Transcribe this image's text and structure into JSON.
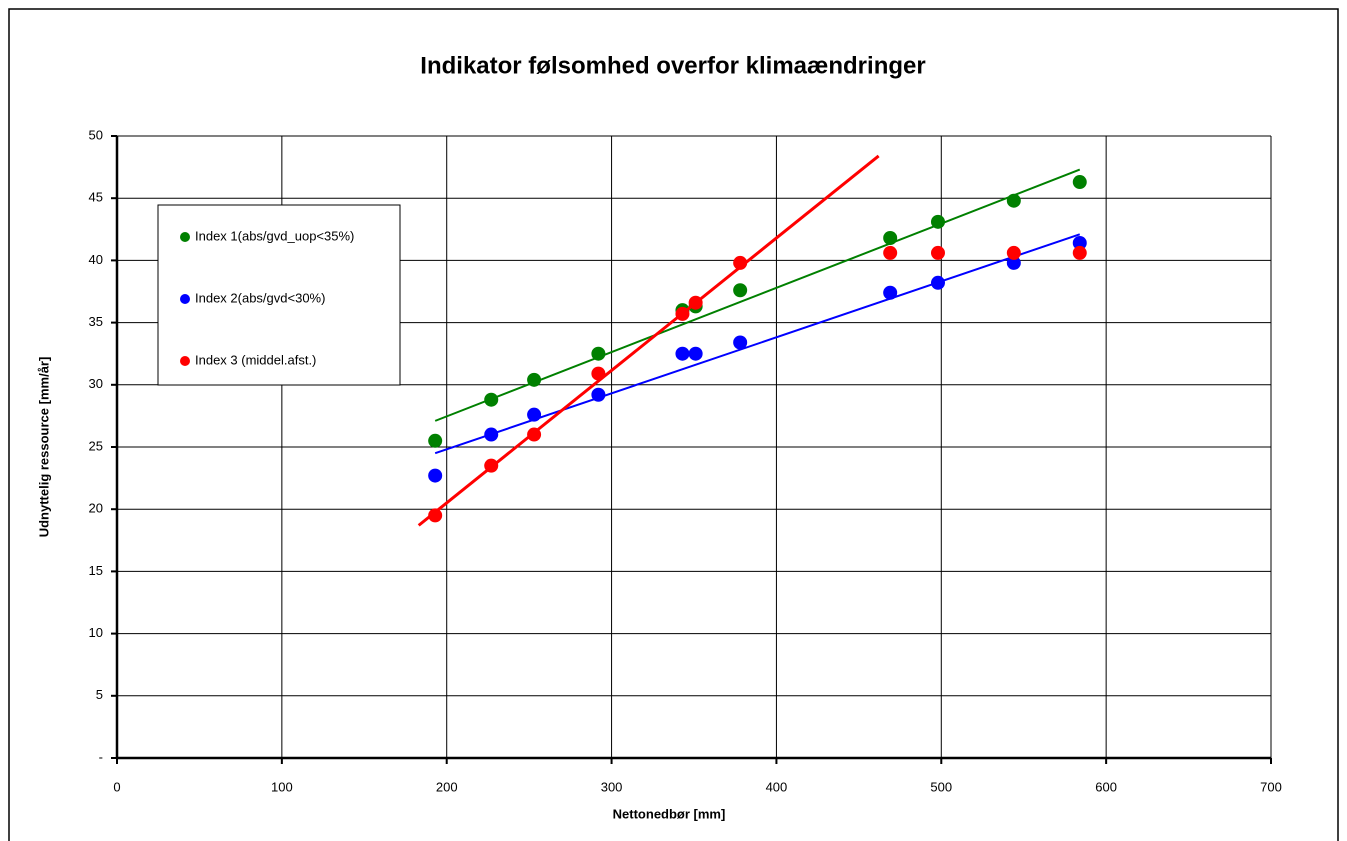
{
  "chart_data": {
    "type": "scatter",
    "title": "Indikator følsomhed overfor klimaændringer",
    "xlabel": "Nettonedbør [mm]",
    "ylabel": "Udnyttelig ressource [mm/år]",
    "xlim": [
      0,
      700
    ],
    "ylim": [
      0,
      50
    ],
    "xticks": [
      0,
      100,
      200,
      300,
      400,
      500,
      600,
      700
    ],
    "yticks": [
      {
        "value": 0,
        "label": "-"
      },
      5,
      10,
      15,
      20,
      25,
      30,
      35,
      40,
      45,
      50
    ],
    "grid": true,
    "legend": "upper left",
    "series": [
      {
        "name": "Index 1(abs/gvd_uop<35%)",
        "color": "#008000",
        "x": [
          193,
          227,
          253,
          292,
          343,
          351,
          378,
          469,
          498,
          544,
          584
        ],
        "values": [
          25.5,
          28.8,
          30.4,
          32.5,
          36.0,
          36.3,
          37.6,
          41.8,
          43.1,
          44.8,
          46.3
        ],
        "trend": {
          "x": [
            193,
            584
          ],
          "y": [
            27.1,
            47.3
          ]
        }
      },
      {
        "name": "Index 2(abs/gvd<30%)",
        "color": "#0000ff",
        "x": [
          193,
          227,
          253,
          292,
          343,
          351,
          378,
          469,
          498,
          544,
          584
        ],
        "values": [
          22.7,
          26.0,
          27.6,
          29.2,
          32.5,
          32.5,
          33.4,
          37.4,
          38.2,
          39.8,
          41.4
        ],
        "trend": {
          "x": [
            193,
            584
          ],
          "y": [
            24.5,
            42.1
          ]
        }
      },
      {
        "name": "Index 3 (middel.afst.)",
        "color": "#ff0000",
        "x": [
          193,
          227,
          253,
          292,
          343,
          351,
          378,
          469,
          498,
          544,
          584
        ],
        "values": [
          19.5,
          23.5,
          26.0,
          30.9,
          35.7,
          36.6,
          39.8,
          40.6,
          40.6,
          40.6,
          40.6
        ],
        "trend": {
          "x": [
            183,
            462
          ],
          "y": [
            18.7,
            48.4
          ]
        }
      }
    ]
  }
}
